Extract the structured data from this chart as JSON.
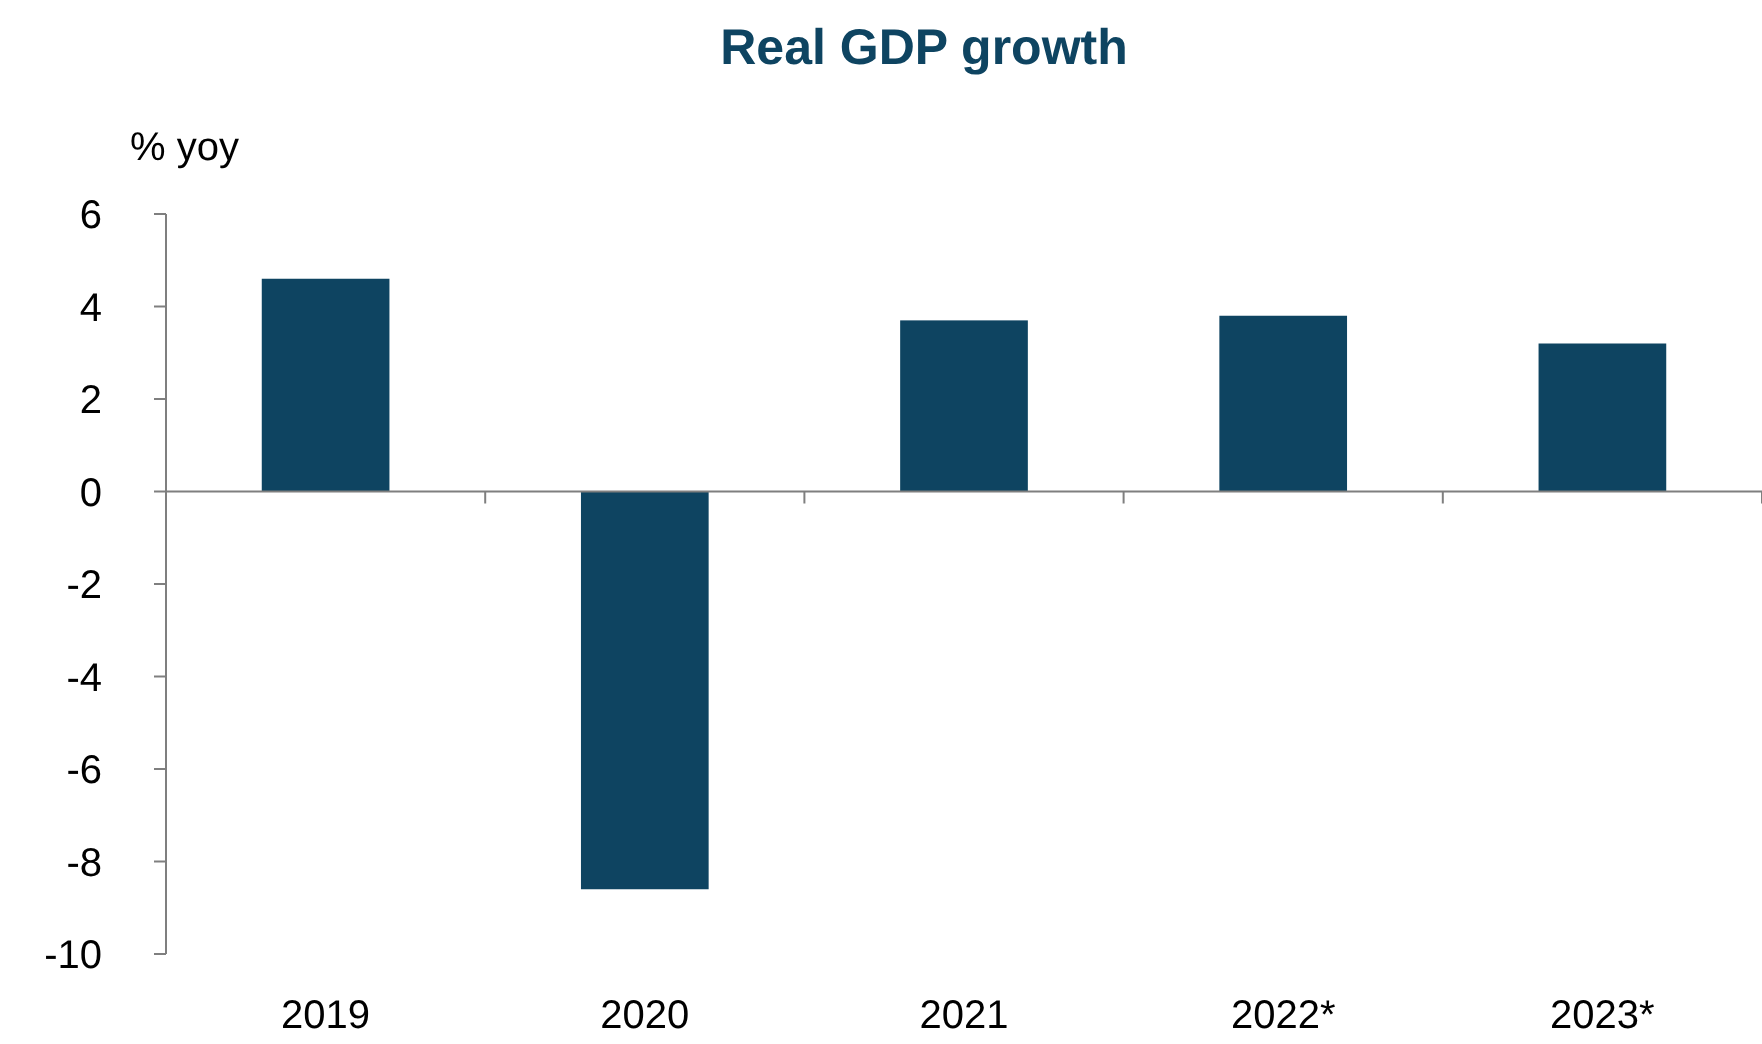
{
  "chart_data": {
    "type": "bar",
    "title": "Real GDP growth",
    "ylabel": "% yoy",
    "categories": [
      "2019",
      "2020",
      "2021",
      "2022*",
      "2023*"
    ],
    "values": [
      4.6,
      -8.6,
      3.7,
      3.8,
      3.2
    ],
    "color": "#0e4461",
    "ylim": [
      -10,
      6
    ],
    "yticks": [
      -10,
      -8,
      -6,
      -4,
      -2,
      0,
      2,
      4,
      6
    ]
  }
}
